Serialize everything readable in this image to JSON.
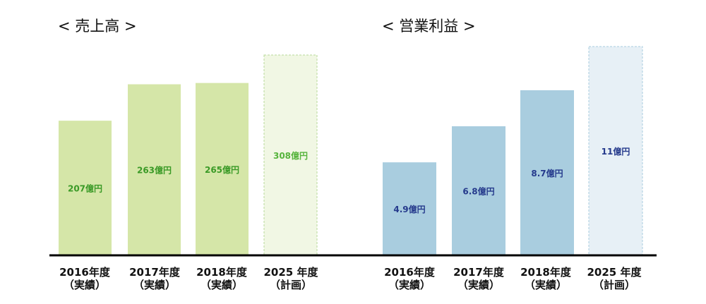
{
  "chart_data": [
    {
      "type": "bar",
      "title": "< 売上高 >",
      "categories": [
        [
          "2016年度",
          "（実績）"
        ],
        [
          "2017年度",
          "（実績）"
        ],
        [
          "2018年度",
          "（実績）"
        ],
        [
          "2025 年度",
          "（計画）"
        ]
      ],
      "values": [
        207,
        263,
        265,
        308
      ],
      "value_labels": [
        "207億円",
        "263億円",
        "265億円",
        "308億円"
      ],
      "plan_flags": [
        false,
        false,
        false,
        true
      ],
      "ylim": [
        0,
        308
      ],
      "colors": {
        "actual_fill": "#d5e6a8",
        "actual_label": "#3a9a26",
        "plan_fill": "#f1f7e4",
        "plan_stroke": "#b8d89a",
        "plan_label": "#56b43c"
      },
      "grid": false,
      "legend": "none"
    },
    {
      "type": "bar",
      "title": "< 営業利益 >",
      "categories": [
        [
          "2016年度",
          "（実績）"
        ],
        [
          "2017年度",
          "（実績）"
        ],
        [
          "2018年度",
          "（実績）"
        ],
        [
          "2025 年度",
          "（計画）"
        ]
      ],
      "values": [
        4.9,
        6.8,
        8.7,
        11
      ],
      "value_labels": [
        "4.9億円",
        "6.8億円",
        "8.7億円",
        "11億円"
      ],
      "plan_flags": [
        false,
        false,
        false,
        true
      ],
      "ylim": [
        0,
        11
      ],
      "colors": {
        "actual_fill": "#a9cddf",
        "actual_label": "#253a8c",
        "plan_fill": "#e7f0f6",
        "plan_stroke": "#a9cddf",
        "plan_label": "#253a8c"
      },
      "grid": false,
      "legend": "none"
    }
  ],
  "baseline_color": "#000000"
}
